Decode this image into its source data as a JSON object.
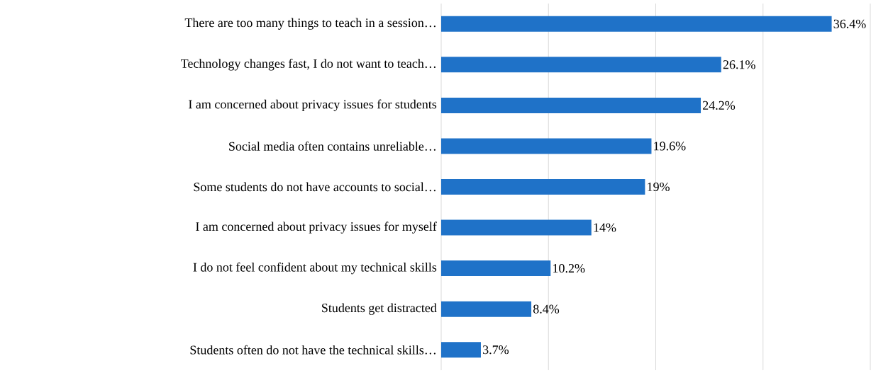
{
  "chart_data": {
    "type": "bar",
    "orientation": "horizontal",
    "categories": [
      "There are too many things to teach in a session…",
      "Technology changes fast, I do not want to teach…",
      "I am concerned about privacy issues for students",
      "Social media often contains unreliable…",
      "Some students do not have accounts to social…",
      "I am concerned about privacy issues for myself",
      "I do not feel confident about my technical skills",
      "Students get distracted",
      "Students often do not have the technical skills…"
    ],
    "values": [
      36.4,
      26.1,
      24.2,
      19.6,
      19,
      14,
      10.2,
      8.4,
      3.7
    ],
    "value_labels": [
      "36.4%",
      "26.1%",
      "24.2%",
      "19.6%",
      "19%",
      "14%",
      "10.2%",
      "8.4%",
      "3.7%"
    ],
    "color": "#1f72c8",
    "xlim": [
      0,
      40
    ],
    "xticks": [
      {
        "value": 0,
        "label": null
      },
      {
        "value": 10,
        "label": null
      },
      {
        "value": 20,
        "label": null
      },
      {
        "value": 30,
        "label": null
      },
      {
        "value": 40,
        "label": null
      }
    ],
    "grid": "x",
    "tick_labels": "y"
  }
}
